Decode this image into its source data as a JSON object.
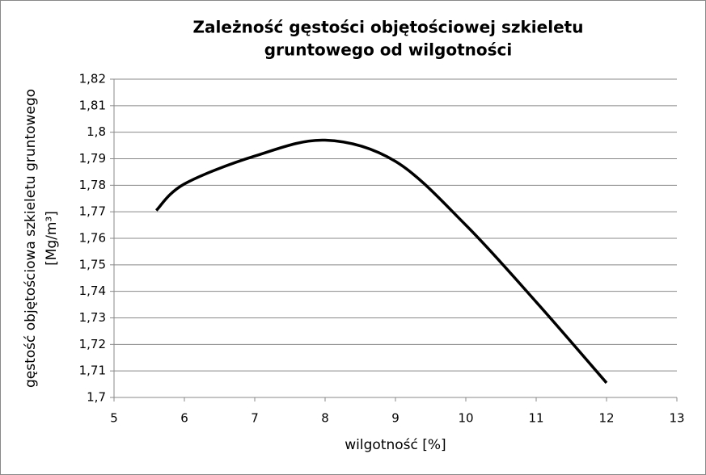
{
  "chart_data": {
    "type": "line",
    "title": [
      "Zależność gęstości objętościowej szkieletu",
      "gruntowego od wilgotności"
    ],
    "xlabel": "wilgotność [%]",
    "ylabel": [
      "gęstość objętościowa szkieletu gruntowego",
      "[Mg/m³]"
    ],
    "x": [
      5.6,
      6,
      7,
      8,
      9,
      10,
      11,
      12
    ],
    "series": [
      {
        "name": "gęstość",
        "color": "#000000",
        "values": [
          1.7705,
          1.7805,
          1.791,
          1.797,
          1.789,
          1.765,
          1.736,
          1.7055
        ]
      }
    ],
    "xlim": [
      5,
      13
    ],
    "xticks": [
      5,
      6,
      7,
      8,
      9,
      10,
      11,
      12,
      13
    ],
    "ylim": [
      1.7,
      1.82
    ],
    "yticks": [
      {
        "value": 1.7,
        "label": "1,7"
      },
      {
        "value": 1.71,
        "label": "1,71"
      },
      {
        "value": 1.72,
        "label": "1,72"
      },
      {
        "value": 1.73,
        "label": "1,73"
      },
      {
        "value": 1.74,
        "label": "1,74"
      },
      {
        "value": 1.75,
        "label": "1,75"
      },
      {
        "value": 1.76,
        "label": "1,76"
      },
      {
        "value": 1.77,
        "label": "1,77"
      },
      {
        "value": 1.78,
        "label": "1,78"
      },
      {
        "value": 1.79,
        "label": "1,79"
      },
      {
        "value": 1.8,
        "label": "1,8"
      },
      {
        "value": 1.81,
        "label": "1,81"
      },
      {
        "value": 1.82,
        "label": "1,82"
      }
    ],
    "grid": true
  }
}
